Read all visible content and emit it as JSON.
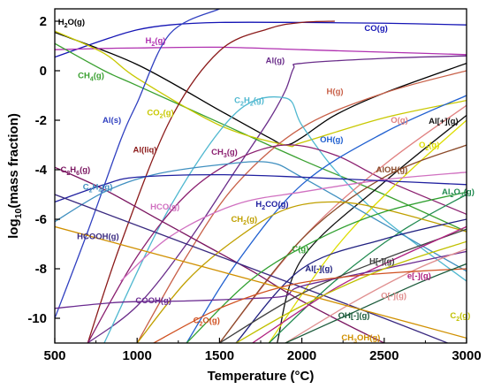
{
  "chart_data": {
    "type": "line",
    "xlabel": "Temperature (°C)",
    "ylabel_parts": [
      "log",
      "10",
      "(mass fraction)"
    ],
    "xlim": [
      500,
      3000
    ],
    "ylim": [
      -11,
      2.5
    ],
    "xticks": [
      500,
      1000,
      1500,
      2000,
      2500,
      3000
    ],
    "yticks": [
      2,
      0,
      -2,
      -4,
      -6,
      -8,
      -10
    ],
    "grid": false,
    "series": [
      {
        "name": "H2O(g)",
        "label": [
          [
            "H",
            ""
          ],
          [
            "2",
            "sub"
          ],
          [
            "O(g)",
            ""
          ]
        ],
        "color": "#000000",
        "lx": 520,
        "ly": 1.85,
        "x": [
          500,
          1000,
          1500,
          1800,
          1900,
          2000,
          2200,
          2500,
          3000
        ],
        "y": [
          1.55,
          0.25,
          -1.6,
          -2.7,
          -3.0,
          -2.7,
          -1.8,
          -0.9,
          0.3
        ]
      },
      {
        "name": "CO(g)",
        "label": [
          [
            "CO(g)",
            ""
          ]
        ],
        "color": "#1515b5",
        "lx": 2380,
        "ly": 1.6,
        "x": [
          500,
          800,
          1000,
          1200,
          1500,
          2000,
          2500,
          3000
        ],
        "y": [
          0.55,
          1.25,
          1.65,
          1.85,
          1.95,
          1.95,
          1.92,
          1.85
        ]
      },
      {
        "name": "H2(g)",
        "label": [
          [
            "H",
            ""
          ],
          [
            "2",
            "sub"
          ],
          [
            "(g)",
            ""
          ]
        ],
        "color": "#b030b0",
        "lx": 1050,
        "ly": 1.1,
        "x": [
          500,
          800,
          1000,
          1500,
          2000,
          2500,
          3000
        ],
        "y": [
          0.85,
          0.9,
          0.92,
          0.95,
          0.85,
          0.75,
          0.65
        ]
      },
      {
        "name": "Al(g)",
        "label": [
          [
            "Al(g)",
            ""
          ]
        ],
        "color": "#6a2d8a",
        "lx": 1780,
        "ly": 0.3,
        "x": [
          700,
          1000,
          1300,
          1600,
          1800,
          1900,
          1950,
          2000,
          2500,
          3000
        ],
        "y": [
          -11,
          -9.5,
          -7.0,
          -4.0,
          -2.0,
          -0.8,
          0.1,
          0.3,
          0.5,
          0.6
        ]
      },
      {
        "name": "CH4(g)",
        "label": [
          [
            "CH",
            ""
          ],
          [
            "4",
            "sub"
          ],
          [
            "(g)",
            ""
          ]
        ],
        "color": "#3aa030",
        "lx": 640,
        "ly": -0.3,
        "x": [
          500,
          800,
          1000,
          1500,
          2000,
          2500,
          3000
        ],
        "y": [
          1.1,
          0.0,
          -0.6,
          -2.1,
          -3.6,
          -5.0,
          -6.5
        ]
      },
      {
        "name": "CO2(g)",
        "label": [
          [
            "CO",
            ""
          ],
          [
            "2",
            "sub"
          ],
          [
            "(g)",
            ""
          ]
        ],
        "color": "#c8c800",
        "lx": 1060,
        "ly": -1.8,
        "x": [
          500,
          800,
          1000,
          1500,
          1900,
          2000,
          2500,
          3000
        ],
        "y": [
          1.6,
          0.7,
          -0.3,
          -2.2,
          -3.0,
          -2.9,
          -1.9,
          -1.2
        ]
      },
      {
        "name": "H(g)",
        "label": [
          [
            "H(g)",
            ""
          ]
        ],
        "color": "#c86048",
        "lx": 2150,
        "ly": -0.95,
        "x": [
          1000,
          1300,
          1600,
          2000,
          2500,
          3000
        ],
        "y": [
          -11,
          -7.5,
          -4.6,
          -2.3,
          -0.9,
          0.0
        ]
      },
      {
        "name": "C2H2(g)",
        "label": [
          [
            "C",
            ""
          ],
          [
            "2",
            "sub"
          ],
          [
            "H",
            ""
          ],
          [
            "2",
            "sub"
          ],
          [
            "(g)",
            ""
          ]
        ],
        "color": "#50b8d0",
        "lx": 1590,
        "ly": -1.3,
        "x": [
          800,
          1200,
          1600,
          1900,
          2000,
          2200,
          2500,
          3000
        ],
        "y": [
          -11,
          -5.5,
          -1.7,
          -1.1,
          -2.2,
          -4.0,
          -6.0,
          -8.5
        ]
      },
      {
        "name": "Al(s)",
        "label": [
          [
            "Al(s)",
            ""
          ]
        ],
        "color": "#3040c0",
        "lx": 790,
        "ly": -2.1,
        "x": [
          500,
          700,
          900,
          1000,
          1200,
          1500
        ],
        "y": [
          -10,
          -6.5,
          -2.8,
          -1.3,
          1.5,
          2.5
        ]
      },
      {
        "name": "Al(liq)",
        "label": [
          [
            "Al(liq)",
            ""
          ]
        ],
        "color": "#8b1a1a",
        "lx": 975,
        "ly": -3.3,
        "x": [
          700,
          900,
          1200,
          1500,
          1800,
          2000,
          2200
        ],
        "y": [
          -11,
          -7.0,
          -2.0,
          0.8,
          1.7,
          1.95,
          2.0
        ]
      },
      {
        "name": "CH3(g)",
        "label": [
          [
            "CH",
            ""
          ],
          [
            "3",
            "sub"
          ],
          [
            "(g)",
            ""
          ]
        ],
        "color": "#8b2070",
        "lx": 1450,
        "ly": -3.4,
        "x": [
          700,
          1000,
          1300,
          1600,
          1900,
          2200,
          2500,
          3000
        ],
        "y": [
          -11,
          -7.5,
          -5.0,
          -3.6,
          -3.0,
          -3.4,
          -4.4,
          -5.8
        ]
      },
      {
        "name": "O(g)",
        "label": [
          [
            "O(g)",
            ""
          ]
        ],
        "color": "#e08080",
        "lx": 2540,
        "ly": -2.1,
        "x": [
          1500,
          2000,
          2500,
          3000
        ],
        "y": [
          -11,
          -6.8,
          -3.8,
          -1.4
        ]
      },
      {
        "name": "Al[+](g)",
        "label": [
          [
            "Al[+](g)",
            ""
          ]
        ],
        "color": "#111111",
        "lx": 2770,
        "ly": -2.15,
        "x": [
          1850,
          2000,
          2500,
          3000
        ],
        "y": [
          -11,
          -7.6,
          -4.5,
          -1.8
        ]
      },
      {
        "name": "OH(g)",
        "label": [
          [
            "OH(g)",
            ""
          ]
        ],
        "color": "#2060d0",
        "lx": 2110,
        "ly": -2.9,
        "x": [
          1300,
          1600,
          2000,
          2500,
          3000
        ],
        "y": [
          -11,
          -7.8,
          -4.6,
          -2.5,
          -1.0
        ]
      },
      {
        "name": "O2(g)",
        "label": [
          [
            "O",
            ""
          ],
          [
            "2",
            "sub"
          ],
          [
            "(g)",
            ""
          ]
        ],
        "color": "#dddd00",
        "lx": 2710,
        "ly": -3.1,
        "x": [
          1800,
          2200,
          2600,
          3000
        ],
        "y": [
          -11,
          -7.2,
          -4.4,
          -2.0
        ]
      },
      {
        "name": "C2H6(g)",
        "label": [
          [
            "C",
            ""
          ],
          [
            "2",
            "sub"
          ],
          [
            "H",
            ""
          ],
          [
            "6",
            "sub"
          ],
          [
            "(g)",
            ""
          ]
        ],
        "color": "#7a1560",
        "lx": 535,
        "ly": -4.1,
        "x": [
          500,
          800,
          1100,
          1400,
          1700,
          2000,
          2500,
          3000
        ],
        "y": [
          -3.9,
          -4.8,
          -5.9,
          -7.0,
          -8.1,
          -9.3,
          -11,
          -12.5
        ]
      },
      {
        "name": "C2H4(g)",
        "label": [
          [
            "C",
            ""
          ],
          [
            "2",
            "sub"
          ],
          [
            "H",
            ""
          ],
          [
            "4",
            "sub"
          ],
          [
            "(g)",
            ""
          ]
        ],
        "color": "#4090c0",
        "lx": 670,
        "ly": -4.8,
        "x": [
          500,
          800,
          1100,
          1500,
          1800,
          2000,
          2500,
          3000
        ],
        "y": [
          -6.1,
          -4.9,
          -4.2,
          -3.8,
          -3.7,
          -4.3,
          -6.2,
          -8.1
        ]
      },
      {
        "name": "AlOH(g)",
        "label": [
          [
            "AlOH(g)",
            ""
          ]
        ],
        "color": "#8b4a2a",
        "lx": 2450,
        "ly": -4.1,
        "x": [
          1500,
          2000,
          2500,
          3000
        ],
        "y": [
          -11,
          -6.8,
          -4.3,
          -3.0
        ]
      },
      {
        "name": "HCO(g)",
        "label": [
          [
            "HCO(g)",
            ""
          ]
        ],
        "color": "#d070c0",
        "lx": 1080,
        "ly": -5.6,
        "x": [
          900,
          1200,
          1600,
          2000,
          2500,
          3000
        ],
        "y": [
          -8.5,
          -6.7,
          -5.4,
          -4.9,
          -4.4,
          -4.1
        ]
      },
      {
        "name": "H2CO(g)",
        "label": [
          [
            "H",
            ""
          ],
          [
            "2",
            "sub"
          ],
          [
            "CO(g)",
            ""
          ]
        ],
        "color": "#2020a0",
        "lx": 1720,
        "ly": -5.5,
        "x": [
          500,
          800,
          1000,
          1500,
          2000,
          2500,
          3000
        ],
        "y": [
          -5.3,
          -4.6,
          -4.3,
          -4.2,
          -4.3,
          -4.45,
          -4.6
        ]
      },
      {
        "name": "Al2O3(g)",
        "label": [
          [
            "Al",
            ""
          ],
          [
            "2",
            "sub"
          ],
          [
            "O",
            ""
          ],
          [
            "3",
            "sub"
          ],
          [
            "(g)",
            ""
          ]
        ],
        "color": "#208a50",
        "lx": 2850,
        "ly": -5.0,
        "x": [
          1800,
          2200,
          2600,
          3000
        ],
        "y": [
          -11,
          -8.5,
          -6.5,
          -5.0
        ]
      },
      {
        "name": "CH2(g)",
        "label": [
          [
            "CH",
            ""
          ],
          [
            "2",
            "sub"
          ],
          [
            "(g)",
            ""
          ]
        ],
        "color": "#c0a000",
        "lx": 1570,
        "ly": -6.1,
        "x": [
          1000,
          1300,
          1600,
          1900,
          2200,
          2500,
          3000
        ],
        "y": [
          -11,
          -8.5,
          -6.8,
          -5.6,
          -5.3,
          -5.6,
          -6.5
        ]
      },
      {
        "name": "HCOOH(g)",
        "label": [
          [
            "HCOOH(g)",
            ""
          ]
        ],
        "color": "#3a2a80",
        "lx": 635,
        "ly": -6.8,
        "x": [
          500,
          900,
          1300,
          1700,
          2100,
          2500,
          3000
        ],
        "y": [
          -5.0,
          -6.0,
          -7.0,
          -8.0,
          -9.0,
          -10.0,
          -11.3
        ]
      },
      {
        "name": "C(g)",
        "label": [
          [
            "C(g)",
            ""
          ]
        ],
        "color": "#30a030",
        "lx": 1940,
        "ly": -7.3,
        "x": [
          1300,
          1700,
          2100,
          2500,
          3000
        ],
        "y": [
          -11,
          -8.4,
          -6.8,
          -5.7,
          -4.9
        ]
      },
      {
        "name": "Al[-](g)",
        "label": [
          [
            "Al[-](g)",
            ""
          ]
        ],
        "color": "#202080",
        "lx": 2020,
        "ly": -8.1,
        "x": [
          1600,
          2000,
          2500,
          3000
        ],
        "y": [
          -11,
          -8.0,
          -6.8,
          -6.0
        ]
      },
      {
        "name": "H[-](g)",
        "label": [
          [
            "H[-](g)",
            ""
          ]
        ],
        "color": "#404040",
        "lx": 2410,
        "ly": -7.8,
        "x": [
          1500,
          2000,
          2500,
          3000
        ],
        "y": [
          -11,
          -9.0,
          -7.6,
          -6.4
        ]
      },
      {
        "name": "e[-](g)",
        "label": [
          [
            "e[-](g)",
            ""
          ]
        ],
        "color": "#b02080",
        "lx": 2640,
        "ly": -8.4,
        "x": [
          1700,
          2200,
          2600,
          3000
        ],
        "y": [
          -11,
          -8.8,
          -7.5,
          -6.3
        ]
      },
      {
        "name": "COOH(g)",
        "label": [
          [
            "COOH(g)",
            ""
          ]
        ],
        "color": "#6a2a90",
        "lx": 990,
        "ly": -9.4,
        "x": [
          500,
          900,
          1300,
          1700,
          1900,
          2000,
          2500,
          3000
        ],
        "y": [
          -9.6,
          -9.35,
          -9.3,
          -9.2,
          -9.1,
          -8.7,
          -8.0,
          -7.3
        ]
      },
      {
        "name": "O[-](g)",
        "label": [
          [
            "O[-](g)",
            ""
          ]
        ],
        "color": "#e09090",
        "lx": 2480,
        "ly": -9.2,
        "x": [
          1900,
          2300,
          2700,
          3000
        ],
        "y": [
          -11,
          -9.4,
          -8.0,
          -7.2
        ]
      },
      {
        "name": "C2O(g)",
        "label": [
          [
            "C",
            ""
          ],
          [
            "2",
            "sub"
          ],
          [
            "O(g)",
            ""
          ]
        ],
        "color": "#d05020",
        "lx": 1340,
        "ly": -10.2,
        "x": [
          1100,
          1500,
          1900,
          2300,
          2700,
          3000
        ],
        "y": [
          -11,
          -9.6,
          -8.7,
          -8.3,
          -8.1,
          -8.0
        ]
      },
      {
        "name": "OH[-](g)",
        "label": [
          [
            "OH[-](g)",
            ""
          ]
        ],
        "color": "#1a5a3a",
        "lx": 2220,
        "ly": -10.0,
        "x": [
          1900,
          2300,
          2700,
          3000
        ],
        "y": [
          -11,
          -9.8,
          -8.6,
          -7.8
        ]
      },
      {
        "name": "C2(g)",
        "label": [
          [
            "C",
            ""
          ],
          [
            "2",
            "sub"
          ],
          [
            "(g)",
            ""
          ]
        ],
        "color": "#c0c000",
        "lx": 2900,
        "ly": -10.0,
        "x": [
          1600,
          2000,
          2500,
          3000
        ],
        "y": [
          -11,
          -9.5,
          -8.0,
          -6.9
        ]
      },
      {
        "name": "CH3OH(g)",
        "label": [
          [
            "CH",
            ""
          ],
          [
            "3",
            "sub"
          ],
          [
            "OH(g)",
            ""
          ]
        ],
        "color": "#d09000",
        "lx": 2240,
        "ly": -10.9,
        "x": [
          500,
          1000,
          1500,
          2000,
          2500,
          3000
        ],
        "y": [
          -6.3,
          -7.2,
          -8.1,
          -9.0,
          -9.9,
          -10.8
        ]
      }
    ]
  }
}
